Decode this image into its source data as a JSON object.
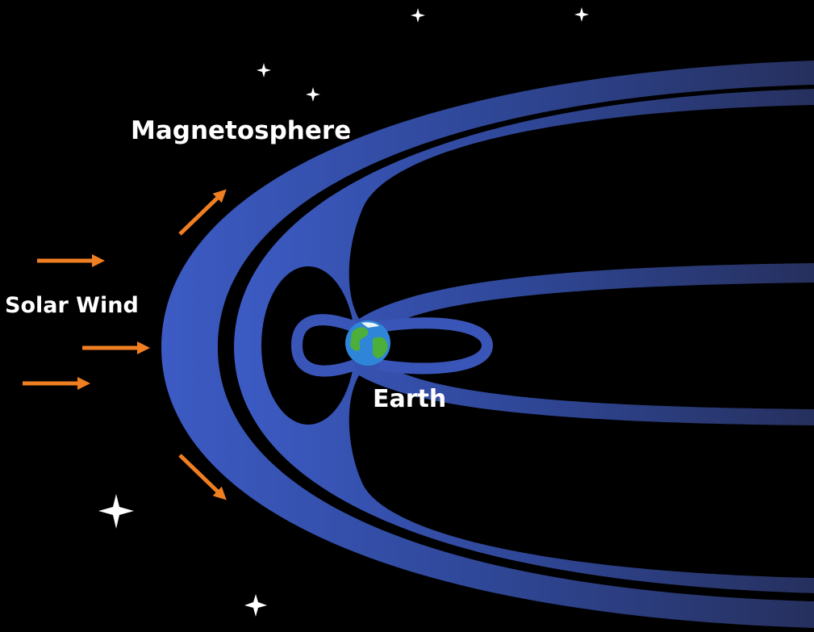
{
  "labels": {
    "magnetosphere": "Magnetosphere",
    "solar_wind": "Solar Wind",
    "earth": "Earth"
  }
}
